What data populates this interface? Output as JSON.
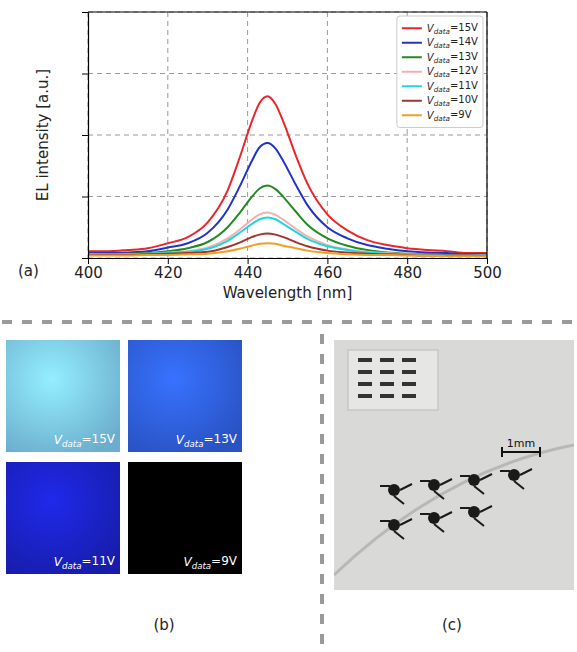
{
  "chart_data": {
    "type": "line",
    "x_label": "Wavelength [nm]",
    "y_label": "EL intensity [a.u.]",
    "annotations": [
      {
        "text": "(a)"
      }
    ],
    "x": [
      400,
      405,
      410,
      415,
      420,
      425,
      430,
      435,
      438,
      441,
      443,
      445,
      447,
      449,
      452,
      455,
      460,
      465,
      470,
      475,
      480,
      485,
      490,
      495,
      500
    ],
    "series": [
      {
        "name": "Vdata=15V",
        "color": "#e8262b",
        "values": [
          0.11,
          0.11,
          0.13,
          0.16,
          0.24,
          0.34,
          0.58,
          1.1,
          1.63,
          2.21,
          2.52,
          2.63,
          2.5,
          2.21,
          1.68,
          1.21,
          0.71,
          0.45,
          0.29,
          0.21,
          0.16,
          0.13,
          0.11,
          0.08,
          0.08
        ]
      },
      {
        "name": "Vdata=14V",
        "color": "#2233cc",
        "values": [
          0.08,
          0.08,
          0.09,
          0.11,
          0.17,
          0.24,
          0.41,
          0.79,
          1.16,
          1.57,
          1.8,
          1.87,
          1.78,
          1.57,
          1.2,
          0.86,
          0.5,
          0.32,
          0.21,
          0.15,
          0.11,
          0.09,
          0.08,
          0.06,
          0.06
        ]
      },
      {
        "name": "Vdata=13V",
        "color": "#228b22",
        "values": [
          0.06,
          0.06,
          0.07,
          0.08,
          0.11,
          0.16,
          0.26,
          0.5,
          0.73,
          0.99,
          1.13,
          1.18,
          1.12,
          0.99,
          0.76,
          0.54,
          0.32,
          0.2,
          0.13,
          0.09,
          0.07,
          0.06,
          0.05,
          0.04,
          0.04
        ]
      },
      {
        "name": "Vdata=12V",
        "color": "#f2b0b0",
        "values": [
          0.06,
          0.05,
          0.06,
          0.07,
          0.09,
          0.11,
          0.17,
          0.32,
          0.46,
          0.62,
          0.71,
          0.74,
          0.7,
          0.62,
          0.48,
          0.35,
          0.21,
          0.14,
          0.1,
          0.08,
          0.06,
          0.05,
          0.05,
          0.04,
          0.04
        ]
      },
      {
        "name": "Vdata=11V",
        "color": "#1fd6e0",
        "values": [
          0.06,
          0.06,
          0.06,
          0.07,
          0.08,
          0.1,
          0.15,
          0.28,
          0.41,
          0.55,
          0.63,
          0.66,
          0.63,
          0.55,
          0.43,
          0.31,
          0.19,
          0.13,
          0.09,
          0.07,
          0.06,
          0.05,
          0.05,
          0.04,
          0.04
        ]
      },
      {
        "name": "Vdata=10V",
        "color": "#a0342f",
        "values": [
          0.05,
          0.05,
          0.05,
          0.06,
          0.07,
          0.08,
          0.1,
          0.18,
          0.25,
          0.34,
          0.38,
          0.4,
          0.38,
          0.34,
          0.26,
          0.19,
          0.12,
          0.09,
          0.07,
          0.06,
          0.05,
          0.04,
          0.04,
          0.04,
          0.03
        ]
      },
      {
        "name": "Vdata=9V",
        "color": "#f0a020",
        "values": [
          0.04,
          0.04,
          0.04,
          0.05,
          0.05,
          0.06,
          0.07,
          0.11,
          0.15,
          0.2,
          0.23,
          0.24,
          0.23,
          0.2,
          0.16,
          0.12,
          0.08,
          0.06,
          0.05,
          0.05,
          0.04,
          0.04,
          0.03,
          0.03,
          0.03
        ]
      }
    ],
    "xlim": [
      400,
      500
    ],
    "xticks": [
      400,
      420,
      440,
      460,
      480,
      500
    ],
    "ylim": [
      0,
      4
    ],
    "yticks": [
      0,
      1,
      2,
      3,
      4
    ],
    "tick_labels": "x",
    "grid": true,
    "legend": "upper right"
  },
  "images": [
    {
      "label": "(b)",
      "photos": [
        {
          "caption": "Vdata=15V",
          "color": "#7cc8ec"
        },
        {
          "caption": "Vdata=13V",
          "color": "#2f5fe0"
        },
        {
          "caption": "Vdata=11V",
          "color": "#1a22c4"
        },
        {
          "caption": "Vdata=9V",
          "color": "#000000"
        }
      ]
    },
    {
      "label": "(c)",
      "scale_bar": "1mm"
    }
  ]
}
